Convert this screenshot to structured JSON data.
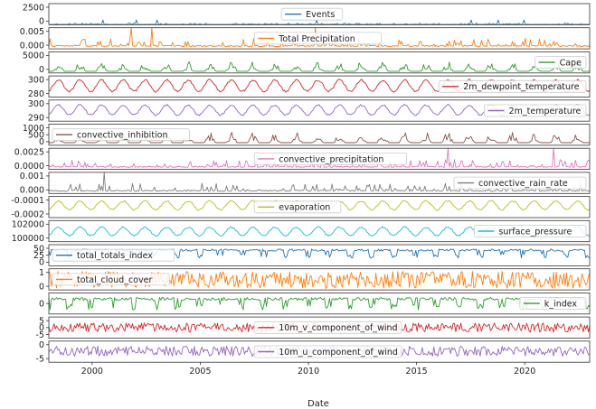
{
  "chart_data": {
    "type": "line",
    "xlabel": "Date",
    "x_range": [
      1998,
      2023
    ],
    "x_ticks": [
      "2000",
      "2005",
      "2010",
      "2015",
      "2020"
    ],
    "panels": [
      {
        "name": "Events",
        "color": "#1f77b4",
        "ylim": [
          0,
          2800
        ],
        "ticks": [
          "0",
          "2500"
        ],
        "legend": "top-center",
        "pattern": "spiky",
        "base": 30,
        "amp": 200
      },
      {
        "name": "Total Precipitation",
        "color": "#ff7f0e",
        "ylim": [
          -0.0005,
          0.007
        ],
        "ticks": [
          "0.000",
          "0.005"
        ],
        "legend": "center",
        "pattern": "spiky",
        "base": 0.0003,
        "amp": 0.003
      },
      {
        "name": "Cape",
        "color": "#2ca02c",
        "ylim": [
          -200,
          6000
        ],
        "ticks": [
          "0",
          "5000"
        ],
        "legend": "right",
        "pattern": "seasonal-spiky",
        "base": 300,
        "amp": 3000
      },
      {
        "name": "2m_dewpoint_temperature",
        "color": "#d62728",
        "ylim": [
          276,
          302
        ],
        "ticks": [
          "280",
          "300"
        ],
        "legend": "right",
        "pattern": "seasonal",
        "base": 290,
        "amp": 7
      },
      {
        "name": "2m_temperature",
        "color": "#9467bd",
        "ylim": [
          278,
          312
        ],
        "ticks": [
          "290",
          "300"
        ],
        "legend": "right",
        "pattern": "seasonal",
        "base": 296,
        "amp": 8
      },
      {
        "name": "convective_inhibition",
        "color": "#8c564b",
        "ylim": [
          -100,
          1100
        ],
        "ticks": [
          "0",
          "500",
          "1000"
        ],
        "legend": "left",
        "pattern": "seasonal-spiky",
        "base": 50,
        "amp": 600
      },
      {
        "name": "convective_precipitation",
        "color": "#e377c2",
        "ylim": [
          -0.0002,
          0.003
        ],
        "ticks": [
          "0.0000",
          "0.0025"
        ],
        "legend": "center",
        "pattern": "spiky",
        "base": 0.0001,
        "amp": 0.0012
      },
      {
        "name": "convective_rain_rate",
        "color": "#7f7f7f",
        "ylim": [
          -0.0001,
          0.0014
        ],
        "ticks": [
          "0.000",
          "0.001"
        ],
        "legend": "right",
        "pattern": "spiky",
        "base": 5e-05,
        "amp": 0.0006
      },
      {
        "name": "evaporation",
        "color": "#bcbd22",
        "ylim": [
          -0.00026,
          -2e-05
        ],
        "ticks": [
          "-0.0002",
          "-0.0001"
        ],
        "legend": "center",
        "pattern": "seasonal",
        "base": -0.00012,
        "amp": 5e-05
      },
      {
        "name": "surface_pressure",
        "color": "#17becf",
        "ylim": [
          99000,
          103500
        ],
        "ticks": [
          "100000",
          "102000"
        ],
        "legend": "right",
        "pattern": "seasonal",
        "base": 101200,
        "amp": 900
      },
      {
        "name": "total_totals_index",
        "color": "#1f77b4",
        "ylim": [
          -10,
          60
        ],
        "ticks": [
          "0",
          "25",
          "50"
        ],
        "legend": "left",
        "pattern": "seasonal-dips",
        "base": 42,
        "amp": 12
      },
      {
        "name": "total_cloud_cover",
        "color": "#ff7f0e",
        "ylim": [
          -0.1,
          1.15
        ],
        "ticks": [
          "0",
          "1"
        ],
        "legend": "left",
        "pattern": "noise-band",
        "base": 0.5,
        "amp": 0.5
      },
      {
        "name": "k_index",
        "color": "#2ca02c",
        "ylim": [
          -55,
          50
        ],
        "ticks": [
          "0"
        ],
        "legend": "right",
        "pattern": "seasonal-dips",
        "base": 20,
        "amp": 25
      },
      {
        "name": "10m_v_component_of_wind",
        "color": "#d62728",
        "ylim": [
          -7,
          7
        ],
        "ticks": [
          "-5",
          "0",
          "5"
        ],
        "legend": "center",
        "pattern": "noise-band",
        "base": 0,
        "amp": 3
      },
      {
        "name": "10m_u_component_of_wind",
        "color": "#9467bd",
        "ylim": [
          -7.5,
          5
        ],
        "ticks": [
          "-5",
          "0"
        ],
        "legend": "center",
        "pattern": "noise-band",
        "base": -1,
        "amp": 3
      }
    ]
  }
}
